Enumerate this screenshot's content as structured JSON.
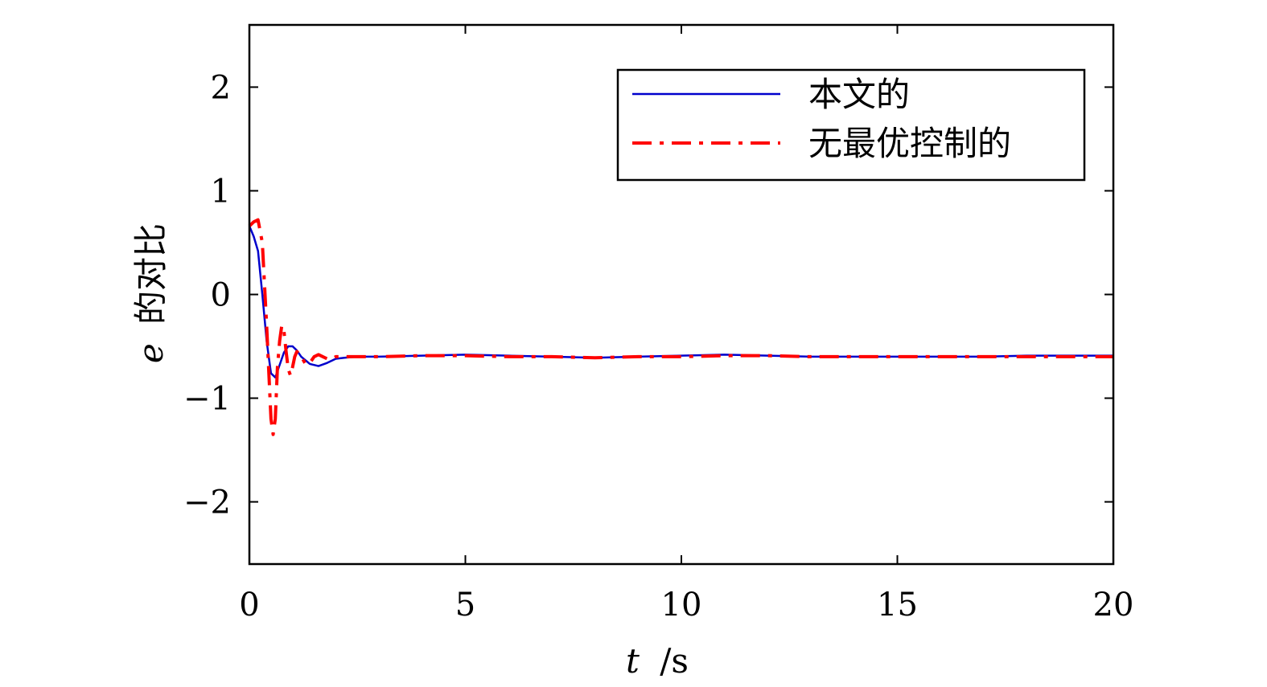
{
  "chart_data": {
    "type": "line",
    "xlabel_var": "t",
    "xlabel_unit": "/s",
    "ylabel_var": "e",
    "ylabel_text": "的对比",
    "xlim": [
      0,
      20
    ],
    "ylim": [
      -2.6,
      2.6
    ],
    "xticks": [
      0,
      5,
      10,
      15,
      20
    ],
    "xtick_labels": [
      "0",
      "5",
      "10",
      "15",
      "20"
    ],
    "yticks": [
      -2,
      -1,
      0,
      1,
      2
    ],
    "ytick_labels": [
      "−2",
      "−1",
      "0",
      "1",
      "2"
    ],
    "legend_position": "top-right",
    "grid": false,
    "series": [
      {
        "name": "本文的",
        "color": "#0000cc",
        "style": "solid",
        "x": [
          0,
          0.1,
          0.2,
          0.3,
          0.4,
          0.5,
          0.6,
          0.7,
          0.8,
          0.9,
          1.0,
          1.1,
          1.2,
          1.4,
          1.6,
          1.8,
          2.0,
          2.2,
          2.5,
          3.0,
          4.0,
          5.0,
          6.0,
          7.0,
          8.0,
          9.0,
          10.0,
          11.0,
          12.0,
          13.0,
          14.0,
          15.0,
          16.0,
          17.0,
          18.0,
          19.0,
          20.0
        ],
        "y": [
          0.66,
          0.56,
          0.42,
          0.0,
          -0.45,
          -0.76,
          -0.8,
          -0.68,
          -0.56,
          -0.5,
          -0.5,
          -0.54,
          -0.6,
          -0.67,
          -0.69,
          -0.66,
          -0.62,
          -0.61,
          -0.6,
          -0.6,
          -0.59,
          -0.58,
          -0.59,
          -0.6,
          -0.61,
          -0.6,
          -0.59,
          -0.58,
          -0.59,
          -0.6,
          -0.6,
          -0.6,
          -0.6,
          -0.6,
          -0.59,
          -0.59,
          -0.59
        ]
      },
      {
        "name": "无最优控制的",
        "color": "#ff0000",
        "style": "dashdot",
        "x": [
          0,
          0.1,
          0.2,
          0.3,
          0.4,
          0.5,
          0.55,
          0.6,
          0.65,
          0.7,
          0.75,
          0.8,
          0.85,
          0.9,
          0.95,
          1.0,
          1.05,
          1.1,
          1.2,
          1.3,
          1.4,
          1.5,
          1.6,
          1.7,
          1.8,
          1.9,
          2.0,
          2.2,
          2.5,
          3.0,
          4.0,
          5.0,
          6.0,
          7.0,
          8.0,
          9.0,
          10.0,
          11.0,
          12.0,
          13.0,
          14.0,
          15.0,
          16.0,
          17.0,
          18.0,
          19.0,
          20.0
        ],
        "y": [
          0.66,
          0.7,
          0.72,
          0.5,
          -0.3,
          -1.2,
          -1.35,
          -1.2,
          -0.7,
          -0.45,
          -0.3,
          -0.35,
          -0.55,
          -0.72,
          -0.78,
          -0.7,
          -0.6,
          -0.55,
          -0.6,
          -0.67,
          -0.66,
          -0.6,
          -0.58,
          -0.6,
          -0.62,
          -0.62,
          -0.6,
          -0.6,
          -0.6,
          -0.6,
          -0.59,
          -0.59,
          -0.6,
          -0.6,
          -0.61,
          -0.6,
          -0.6,
          -0.59,
          -0.59,
          -0.6,
          -0.6,
          -0.6,
          -0.6,
          -0.6,
          -0.6,
          -0.6,
          -0.6
        ]
      }
    ]
  }
}
